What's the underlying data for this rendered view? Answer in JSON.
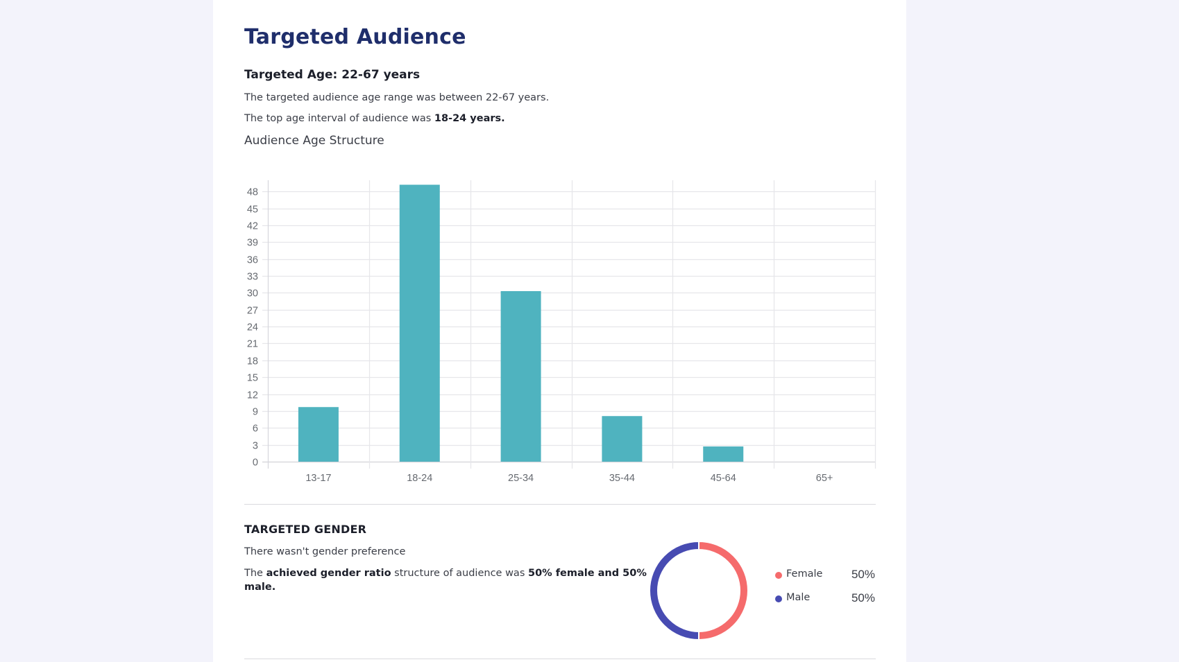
{
  "page": {
    "title": "Targeted Audience",
    "age_section": {
      "heading": "Targeted Age: 22-67 years",
      "line1": "The targeted audience age range was between 22-67 years.",
      "line2_prefix": "The top age interval of audience was ",
      "line2_bold": "18-24 years.",
      "chart_title": "Audience Age Structure"
    },
    "gender_section": {
      "heading": "TARGETED GENDER",
      "line1": "There wasn't gender preference",
      "line2_parts": [
        {
          "text": "The ",
          "bold": false
        },
        {
          "text": "achieved gender ratio",
          "bold": true
        },
        {
          "text": " structure of audience was ",
          "bold": false
        },
        {
          "text": "50% female and 50% male.",
          "bold": true
        }
      ]
    }
  },
  "colors": {
    "bar": "#4fb3bf",
    "female": "#f56b6c",
    "male": "#474bb2",
    "grid": "#e6e6ea",
    "title": "#1f2e6b"
  },
  "chart_data": [
    {
      "type": "bar",
      "title": "Audience Age Structure",
      "xlabel": "",
      "ylabel": "",
      "categories": [
        "13-17",
        "18-24",
        "25-34",
        "35-44",
        "45-64",
        "65+"
      ],
      "values": [
        9.7,
        49.2,
        30.3,
        8.1,
        2.7,
        0
      ],
      "ylim": [
        0,
        50
      ],
      "yticks": [
        0,
        3,
        6,
        9,
        12,
        15,
        18,
        21,
        24,
        27,
        30,
        33,
        36,
        39,
        42,
        45,
        48
      ],
      "grid": true,
      "legend": "none"
    },
    {
      "type": "pie",
      "variant": "donut",
      "title": "Targeted Gender",
      "labels": [
        "Female",
        "Male"
      ],
      "values": [
        50,
        50
      ],
      "value_labels": [
        "50%",
        "50%"
      ],
      "legend": "right"
    }
  ]
}
